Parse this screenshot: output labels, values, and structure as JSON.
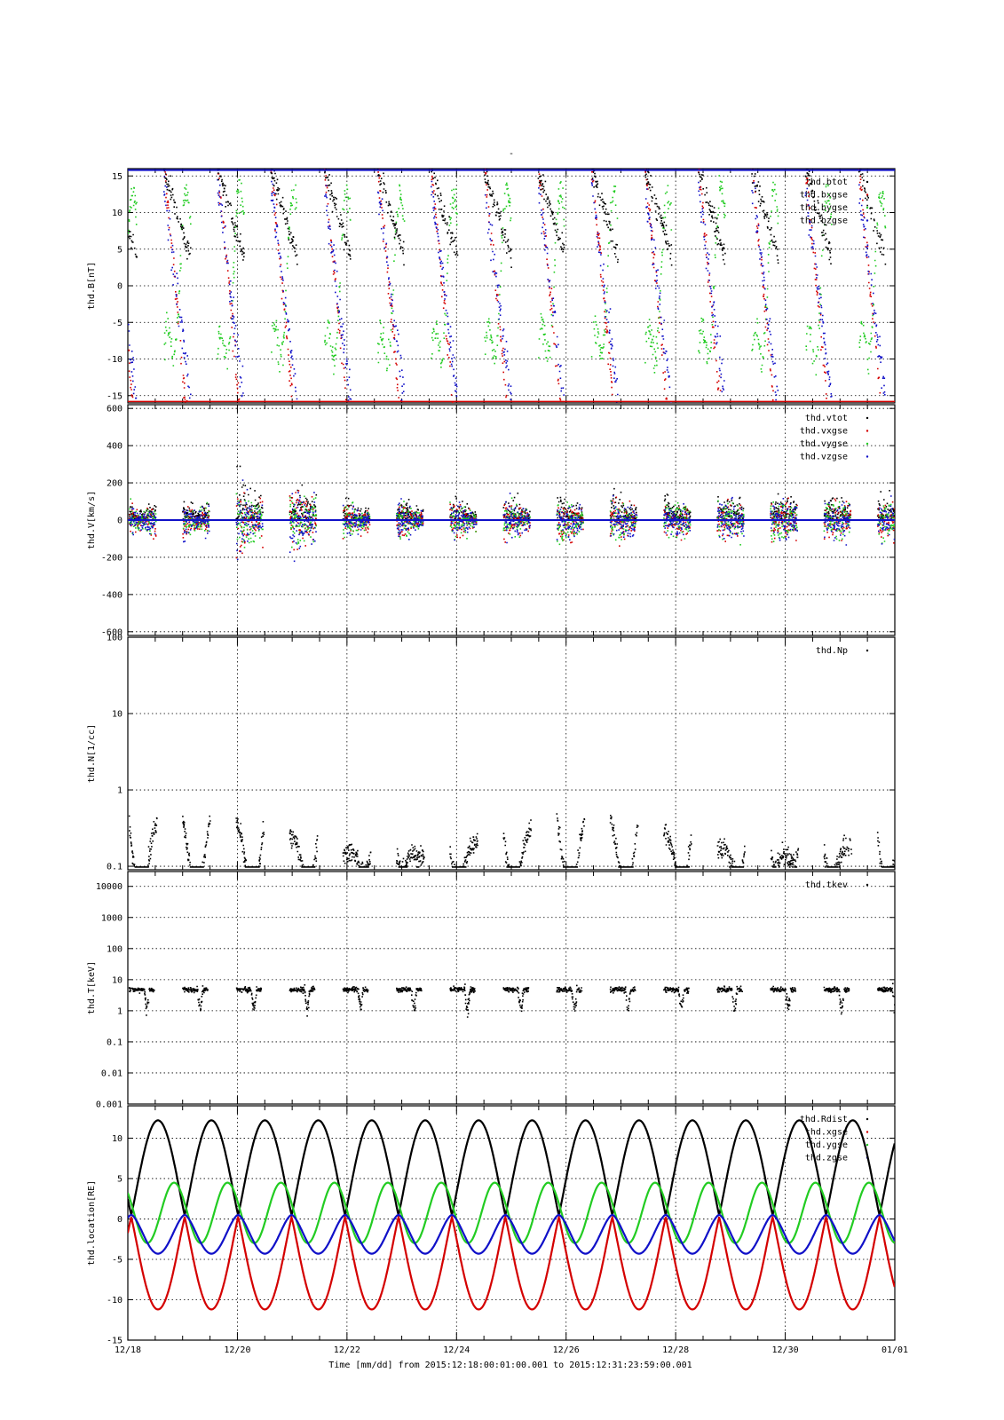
{
  "figure": {
    "title": "-",
    "xlabel": "Time [mm/dd]  from 2015:12:18:00:01:00.001  to  2015:12:31:23:59:00.001"
  },
  "colors": {
    "black": "#000000",
    "red": "#d40000",
    "green": "#22cc22",
    "blue": "#1010c8",
    "grid": "#000000"
  },
  "chart_data": [
    {
      "type": "scatter",
      "ylabel": "thd.B[nT]",
      "ylim": [
        -16,
        16
      ],
      "yticks": [
        15,
        10,
        5,
        0,
        -5,
        -10,
        -15
      ],
      "ytick_labels": [
        "15",
        "10",
        "5",
        "0",
        "-5",
        "-10",
        "-15"
      ],
      "x_days": [
        18,
        32
      ],
      "legend": [
        "thd.btot",
        "thd.bxgse",
        "thd.bygse",
        "thd.bzgse"
      ],
      "legend_colors": [
        "#000000",
        "#d40000",
        "#22cc22",
        "#1010c8"
      ],
      "grid": true
    },
    {
      "type": "scatter",
      "ylabel": "thd.V[km/s]",
      "ylim": [
        -620,
        620
      ],
      "yticks": [
        600,
        400,
        200,
        0,
        -200,
        -400,
        -600
      ],
      "ytick_labels": [
        "600",
        "400",
        "200",
        "0",
        "-200",
        "-400",
        "-600"
      ],
      "x_days": [
        18,
        32
      ],
      "legend": [
        "thd.vtot",
        "thd.vxgse",
        "thd.vygse",
        "thd.vzgse"
      ],
      "legend_colors": [
        "#000000",
        "#d40000",
        "#22cc22",
        "#1010c8"
      ],
      "grid": true
    },
    {
      "type": "scatter",
      "scale": "log",
      "ylabel": "thd.N[1/cc]",
      "ylim": [
        0.09,
        100
      ],
      "yticks": [
        100,
        10,
        1,
        0.1
      ],
      "ytick_labels": [
        "100",
        "10",
        "1",
        "0.1"
      ],
      "x_days": [
        18,
        32
      ],
      "legend": [
        "thd.Np"
      ],
      "legend_colors": [
        "#000000"
      ],
      "grid": true
    },
    {
      "type": "scatter",
      "scale": "log",
      "ylabel": "thd.T[keV]",
      "ylim": [
        0.001,
        30000
      ],
      "yticks": [
        10000,
        1000,
        100,
        10,
        1,
        0.1,
        0.01,
        0.001
      ],
      "ytick_labels": [
        "10000",
        "1000",
        "100",
        "10",
        "1",
        "0.1",
        "0.01",
        "0.001"
      ],
      "x_days": [
        18,
        32
      ],
      "legend": [
        "thd.tkev"
      ],
      "legend_colors": [
        "#000000"
      ],
      "grid": true
    },
    {
      "type": "line",
      "ylabel": "thd.location[RE]",
      "ylim": [
        -15,
        14
      ],
      "yticks": [
        10,
        5,
        0,
        -5,
        -10,
        -15
      ],
      "ytick_labels": [
        "10",
        "5",
        "0",
        "-5",
        "-10",
        "-15"
      ],
      "x_days": [
        18,
        32
      ],
      "legend": [
        "thd.Rdist",
        "thd.xgse",
        "thd.ygse",
        "thd.zgse"
      ],
      "legend_colors": [
        "#000000",
        "#d40000",
        "#22cc22",
        "#1010c8"
      ],
      "orbit_period_days": 0.9756,
      "series": [
        {
          "name": "thd.Rdist",
          "color": "#000000",
          "min": 0.5,
          "max": 12.2
        },
        {
          "name": "thd.xgse",
          "color": "#d40000",
          "min": -11.2,
          "max": 0.2
        },
        {
          "name": "thd.ygse",
          "color": "#22cc22",
          "min": -3.0,
          "max": 4.5
        },
        {
          "name": "thd.zgse",
          "color": "#1010c8",
          "min": -4.3,
          "max": 0.5
        }
      ],
      "grid": true
    }
  ],
  "x_axis": {
    "tick_days": [
      18,
      20,
      22,
      24,
      26,
      28,
      30,
      32
    ],
    "tick_labels": [
      "12/18",
      "12/20",
      "12/22",
      "12/24",
      "12/26",
      "12/28",
      "12/30",
      "01/01"
    ]
  }
}
